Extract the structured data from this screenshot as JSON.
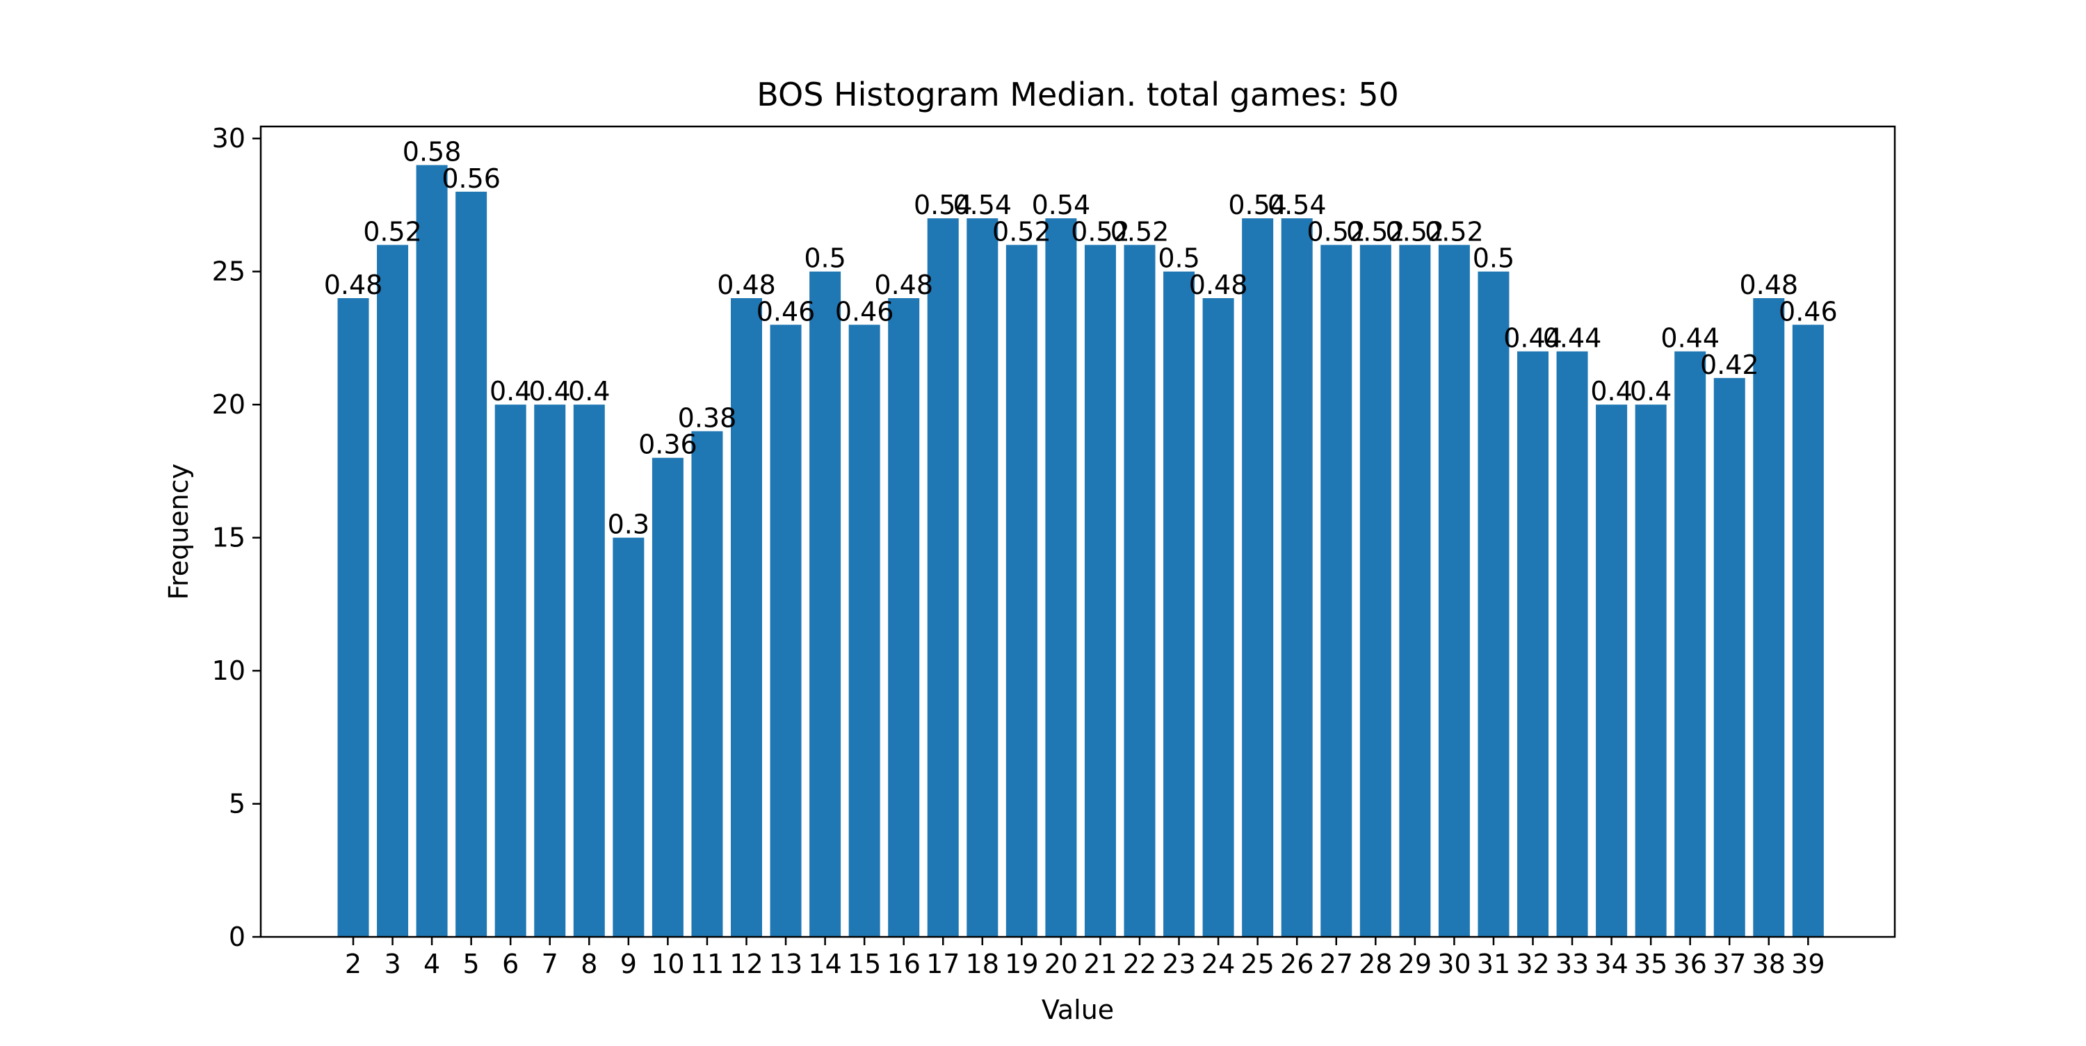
{
  "chart_data": {
    "type": "bar",
    "title": "BOS Histogram Median. total games: 50",
    "xlabel": "Value",
    "ylabel": "Frequency",
    "ylim": [
      0,
      30.45
    ],
    "yticks": [
      0,
      5,
      10,
      15,
      20,
      25,
      30
    ],
    "grid": false,
    "legend": "none",
    "bar_color": "#1f77b4",
    "categories": [
      "2",
      "3",
      "4",
      "5",
      "6",
      "7",
      "8",
      "9",
      "10",
      "11",
      "12",
      "13",
      "14",
      "15",
      "16",
      "17",
      "18",
      "19",
      "20",
      "21",
      "22",
      "23",
      "24",
      "25",
      "26",
      "27",
      "28",
      "29",
      "30",
      "31",
      "32",
      "33",
      "34",
      "35",
      "36",
      "37",
      "38",
      "39"
    ],
    "values": [
      24,
      26,
      29,
      28,
      20,
      20,
      20,
      15,
      18,
      19,
      24,
      23,
      25,
      23,
      24,
      27,
      27,
      26,
      27,
      26,
      26,
      25,
      24,
      27,
      27,
      26,
      26,
      26,
      26,
      25,
      22,
      22,
      20,
      20,
      22,
      21,
      24,
      23
    ],
    "data_labels": [
      "0.48",
      "0.52",
      "0.58",
      "0.56",
      "0.4",
      "0.4",
      "0.4",
      "0.3",
      "0.36",
      "0.38",
      "0.48",
      "0.46",
      "0.5",
      "0.46",
      "0.48",
      "0.54",
      "0.54",
      "0.52",
      "0.54",
      "0.52",
      "0.52",
      "0.5",
      "0.48",
      "0.54",
      "0.54",
      "0.52",
      "0.52",
      "0.52",
      "0.52",
      "0.5",
      "0.44",
      "0.44",
      "0.4",
      "0.4",
      "0.44",
      "0.42",
      "0.48",
      "0.46"
    ]
  }
}
